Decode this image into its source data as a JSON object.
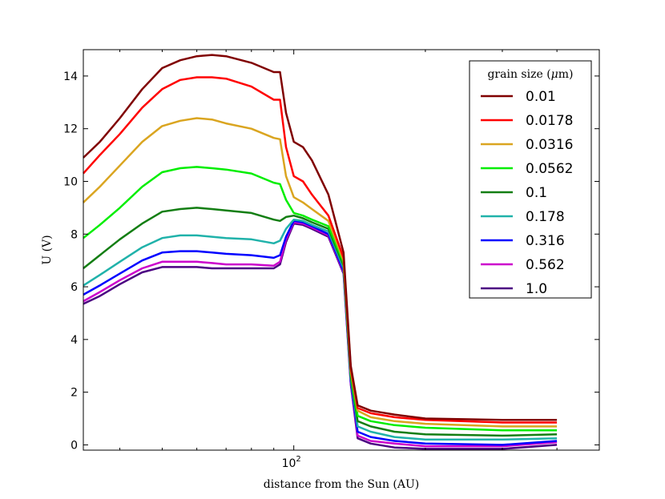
{
  "chart_data": {
    "type": "line",
    "title": "",
    "xlabel": "distance from the Sun (AU)",
    "ylabel": "U (V)",
    "xscale": "log",
    "xlim": [
      33,
      500
    ],
    "ylim": [
      -0.2,
      15
    ],
    "yticks": [
      0,
      2,
      4,
      6,
      8,
      10,
      12,
      14
    ],
    "ytick_labels": [
      "0",
      "2",
      "4",
      "6",
      "8",
      "10",
      "12",
      "14"
    ],
    "xticks": [
      100
    ],
    "xtick_label_base": "10",
    "xtick_label_exp": "2",
    "grid": false,
    "legend": {
      "title_prefix": "grain size (",
      "title_mu": "μ",
      "title_suffix": "m)",
      "placement": "top-right"
    },
    "x": [
      33,
      36,
      40,
      45,
      50,
      55,
      60,
      65,
      70,
      80,
      90,
      93,
      96,
      100,
      105,
      110,
      120,
      130,
      135,
      140,
      150,
      170,
      200,
      300,
      400
    ],
    "series": [
      {
        "name": "0.01",
        "color": "#800000",
        "values": [
          10.9,
          11.5,
          12.4,
          13.5,
          14.3,
          14.6,
          14.75,
          14.8,
          14.75,
          14.5,
          14.15,
          14.15,
          12.6,
          11.5,
          11.3,
          10.8,
          9.5,
          7.3,
          3.0,
          1.5,
          1.3,
          1.15,
          1.0,
          0.95,
          0.95
        ]
      },
      {
        "name": "0.0178",
        "color": "#ff0000",
        "values": [
          10.3,
          11.0,
          11.8,
          12.8,
          13.5,
          13.85,
          13.95,
          13.95,
          13.9,
          13.6,
          13.1,
          13.1,
          11.3,
          10.2,
          10.0,
          9.5,
          8.7,
          7.1,
          2.9,
          1.4,
          1.2,
          1.05,
          0.95,
          0.85,
          0.85
        ]
      },
      {
        "name": "0.0316",
        "color": "#daa520",
        "values": [
          9.2,
          9.8,
          10.6,
          11.5,
          12.1,
          12.3,
          12.4,
          12.35,
          12.2,
          12.0,
          11.65,
          11.6,
          10.2,
          9.4,
          9.2,
          8.95,
          8.5,
          7.0,
          2.8,
          1.3,
          1.05,
          0.9,
          0.8,
          0.7,
          0.7
        ]
      },
      {
        "name": "0.0562",
        "color": "#00ee00",
        "values": [
          7.85,
          8.35,
          9.0,
          9.8,
          10.35,
          10.5,
          10.55,
          10.5,
          10.45,
          10.3,
          9.95,
          9.9,
          9.3,
          8.8,
          8.7,
          8.55,
          8.3,
          6.9,
          2.7,
          1.1,
          0.9,
          0.75,
          0.65,
          0.55,
          0.55
        ]
      },
      {
        "name": "0.1",
        "color": "#137e13",
        "values": [
          6.7,
          7.2,
          7.8,
          8.4,
          8.85,
          8.95,
          9.0,
          8.95,
          8.9,
          8.8,
          8.55,
          8.5,
          8.65,
          8.7,
          8.6,
          8.45,
          8.2,
          6.8,
          2.6,
          0.9,
          0.7,
          0.5,
          0.4,
          0.35,
          0.4
        ]
      },
      {
        "name": "0.178",
        "color": "#20b2aa",
        "values": [
          6.05,
          6.45,
          6.95,
          7.5,
          7.85,
          7.95,
          7.95,
          7.9,
          7.85,
          7.8,
          7.65,
          7.75,
          8.2,
          8.55,
          8.5,
          8.35,
          8.1,
          6.7,
          2.5,
          0.7,
          0.5,
          0.3,
          0.2,
          0.2,
          0.25
        ]
      },
      {
        "name": "0.316",
        "color": "#0000ff",
        "values": [
          5.7,
          6.05,
          6.5,
          7.0,
          7.3,
          7.35,
          7.35,
          7.3,
          7.25,
          7.2,
          7.1,
          7.2,
          7.9,
          8.5,
          8.45,
          8.3,
          8.0,
          6.6,
          2.4,
          0.5,
          0.3,
          0.15,
          0.05,
          0.0,
          0.15
        ]
      },
      {
        "name": "0.562",
        "color": "#cc00cc",
        "values": [
          5.45,
          5.8,
          6.25,
          6.7,
          6.95,
          6.95,
          6.95,
          6.9,
          6.85,
          6.85,
          6.8,
          6.95,
          7.8,
          8.45,
          8.4,
          8.25,
          7.95,
          6.55,
          2.35,
          0.35,
          0.15,
          0.05,
          -0.05,
          -0.05,
          0.1
        ]
      },
      {
        "name": "1.0",
        "color": "#4b0082",
        "values": [
          5.35,
          5.65,
          6.1,
          6.55,
          6.75,
          6.75,
          6.75,
          6.7,
          6.7,
          6.7,
          6.7,
          6.85,
          7.7,
          8.4,
          8.35,
          8.2,
          7.9,
          6.5,
          2.3,
          0.25,
          0.05,
          -0.1,
          -0.15,
          -0.15,
          0.0
        ]
      }
    ]
  }
}
